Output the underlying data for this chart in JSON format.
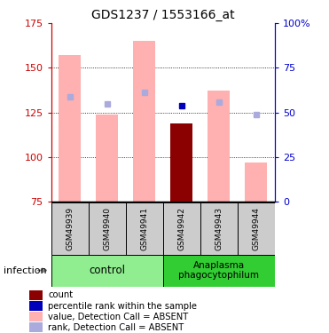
{
  "title": "GDS1237 / 1553166_at",
  "samples": [
    "GSM49939",
    "GSM49940",
    "GSM49941",
    "GSM49942",
    "GSM49943",
    "GSM49944"
  ],
  "group_labels": [
    "control",
    "Anaplasma\nphagocytophilum"
  ],
  "ylim_left": [
    75,
    175
  ],
  "ylim_right": [
    0,
    100
  ],
  "yticks_left": [
    75,
    100,
    125,
    150,
    175
  ],
  "yticks_right": [
    0,
    25,
    50,
    75,
    100
  ],
  "ytick_labels_right": [
    "0",
    "25",
    "50",
    "75",
    "100%"
  ],
  "pink_bar_bottom": 75,
  "pink_bar_top": [
    157,
    124,
    165,
    75,
    137,
    97
  ],
  "dark_red_bar_top": [
    75,
    75,
    75,
    119,
    75,
    75
  ],
  "blue_square_y": [
    134,
    130,
    136,
    129,
    131,
    124
  ],
  "blue_sq_color_dark": "#0000bb",
  "blue_sq_color_light": "#aaaadd",
  "blue_sq_dark_idx": [
    3
  ],
  "pink_color": "#ffb0b0",
  "dark_red_color": "#8b0000",
  "left_axis_color": "#cc0000",
  "right_axis_color": "#0000cc",
  "grid_color": "#000000",
  "bg_plot": "#ffffff",
  "bg_label": "#cccccc",
  "bg_group_control": "#90ee90",
  "bg_group_anaplasma": "#32cd32",
  "infection_label": "infection",
  "legend_items": [
    {
      "color": "#8b0000",
      "label": "count"
    },
    {
      "color": "#0000bb",
      "label": "percentile rank within the sample"
    },
    {
      "color": "#ffb0b0",
      "label": "value, Detection Call = ABSENT"
    },
    {
      "color": "#aaaadd",
      "label": "rank, Detection Call = ABSENT"
    }
  ]
}
